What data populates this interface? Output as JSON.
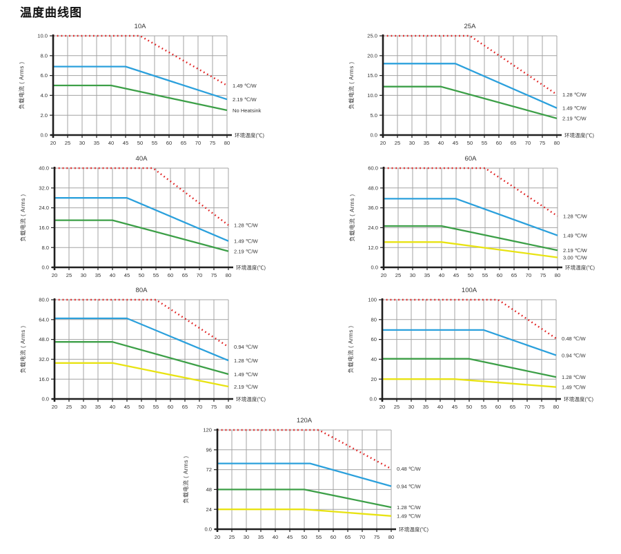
{
  "page_title": "温度曲线图",
  "colors": {
    "red": "#e02222",
    "blue": "#2ba0dc",
    "green": "#3c9f47",
    "yellow": "#e8e312",
    "grid": "#a3a3a3",
    "axis": "#1f1f1f",
    "text": "#333333"
  },
  "x_axis_label": "环境温度(℃)",
  "y_axis_label": "负载电流 ( Arms )",
  "x_ticks": [
    20,
    25,
    30,
    35,
    40,
    45,
    50,
    55,
    60,
    65,
    70,
    75,
    80
  ],
  "chart_data": [
    {
      "type": "line",
      "title": "10A",
      "xlabel": "环境温度(℃)",
      "ylabel": "负载电流 ( Arms )",
      "xlim": [
        20,
        80
      ],
      "ylim": [
        0,
        10
      ],
      "grid": true,
      "legend_position": "right-of-line-end",
      "y_ticks": [
        {
          "v": 0,
          "label": "0.0"
        },
        {
          "v": 2,
          "label": "2.0"
        },
        {
          "v": 4,
          "label": "4.0"
        },
        {
          "v": 6,
          "label": "6.0"
        },
        {
          "v": 8,
          "label": "8.0"
        },
        {
          "v": 10,
          "label": "10.0"
        }
      ],
      "series": [
        {
          "name": "1.49 ℃/W",
          "color": "red",
          "style": "dotted",
          "points": [
            [
              20,
              10
            ],
            [
              50,
              10
            ],
            [
              80,
              5.0
            ]
          ]
        },
        {
          "name": "2.19 ℃/W",
          "color": "blue",
          "style": "solid",
          "points": [
            [
              20,
              6.9
            ],
            [
              45,
              6.9
            ],
            [
              80,
              3.6
            ]
          ]
        },
        {
          "name": "No Heatsink",
          "color": "green",
          "style": "solid",
          "points": [
            [
              20,
              5.0
            ],
            [
              40,
              5.0
            ],
            [
              80,
              2.5
            ]
          ]
        }
      ]
    },
    {
      "type": "line",
      "title": "25A",
      "xlabel": "环境温度(℃)",
      "ylabel": "负载电流 ( Arms )",
      "xlim": [
        20,
        80
      ],
      "ylim": [
        0,
        25
      ],
      "grid": true,
      "legend_position": "right-of-line-end",
      "y_ticks": [
        {
          "v": 0,
          "label": "0.0"
        },
        {
          "v": 5,
          "label": "5.0"
        },
        {
          "v": 10,
          "label": "10.0"
        },
        {
          "v": 15,
          "label": "15.0"
        },
        {
          "v": 20,
          "label": "20.0"
        },
        {
          "v": 25,
          "label": "25.0"
        }
      ],
      "series": [
        {
          "name": "1.28 ℃/W",
          "color": "red",
          "style": "dotted",
          "points": [
            [
              20,
              25
            ],
            [
              50,
              25
            ],
            [
              80,
              10.2
            ]
          ]
        },
        {
          "name": "1.49 ℃/W",
          "color": "blue",
          "style": "solid",
          "points": [
            [
              20,
              18
            ],
            [
              45,
              18
            ],
            [
              80,
              6.8
            ]
          ]
        },
        {
          "name": "2.19 ℃/W",
          "color": "green",
          "style": "solid",
          "points": [
            [
              20,
              12.2
            ],
            [
              40,
              12.2
            ],
            [
              80,
              4.2
            ]
          ]
        }
      ]
    },
    {
      "type": "line",
      "title": "40A",
      "xlabel": "环境温度(℃)",
      "ylabel": "负载电流 ( Arms )",
      "xlim": [
        20,
        80
      ],
      "ylim": [
        0,
        40
      ],
      "grid": true,
      "legend_position": "right-of-line-end",
      "y_ticks": [
        {
          "v": 0,
          "label": "0.0"
        },
        {
          "v": 8,
          "label": "8.0"
        },
        {
          "v": 16,
          "label": "16.0"
        },
        {
          "v": 24,
          "label": "24.0"
        },
        {
          "v": 32,
          "label": "32.0"
        },
        {
          "v": 40,
          "label": "40.0"
        }
      ],
      "series": [
        {
          "name": "1.28 ℃/W",
          "color": "red",
          "style": "dotted",
          "points": [
            [
              20,
              40
            ],
            [
              54,
              40
            ],
            [
              80,
              17
            ]
          ]
        },
        {
          "name": "1.49 ℃/W",
          "color": "blue",
          "style": "solid",
          "points": [
            [
              20,
              28
            ],
            [
              45,
              28
            ],
            [
              80,
              10.6
            ]
          ]
        },
        {
          "name": "2.19 ℃/W",
          "color": "green",
          "style": "solid",
          "points": [
            [
              20,
              19
            ],
            [
              40,
              19
            ],
            [
              80,
              6.5
            ]
          ]
        }
      ]
    },
    {
      "type": "line",
      "title": "60A",
      "xlabel": "环境温度(℃)",
      "ylabel": "负载电流 ( Arms )",
      "xlim": [
        20,
        80
      ],
      "ylim": [
        0,
        60
      ],
      "grid": true,
      "legend_position": "right-of-line-end",
      "y_ticks": [
        {
          "v": 0,
          "label": "0.0"
        },
        {
          "v": 12,
          "label": "12.0"
        },
        {
          "v": 24,
          "label": "24.0"
        },
        {
          "v": 36,
          "label": "36.0"
        },
        {
          "v": 48,
          "label": "48.0"
        },
        {
          "v": 60,
          "label": "60.0"
        }
      ],
      "series": [
        {
          "name": "1.28 ℃/W",
          "color": "red",
          "style": "dotted",
          "points": [
            [
              20,
              60
            ],
            [
              55,
              60
            ],
            [
              80,
              31
            ]
          ]
        },
        {
          "name": "1.49 ℃/W",
          "color": "blue",
          "style": "solid",
          "points": [
            [
              20,
              41.5
            ],
            [
              45,
              41.5
            ],
            [
              80,
              19.3
            ]
          ]
        },
        {
          "name": "2.19 ℃/W",
          "color": "green",
          "style": "solid",
          "points": [
            [
              20,
              25
            ],
            [
              40,
              25
            ],
            [
              80,
              10.3
            ]
          ]
        },
        {
          "name": "3.00 ℃/W",
          "color": "yellow",
          "style": "solid",
          "points": [
            [
              20,
              15.3
            ],
            [
              40,
              15.3
            ],
            [
              80,
              6.0
            ]
          ]
        }
      ]
    },
    {
      "type": "line",
      "title": "80A",
      "xlabel": "环境温度(℃)",
      "ylabel": "负载电流 ( Arms )",
      "xlim": [
        20,
        80
      ],
      "ylim": [
        0,
        80
      ],
      "grid": true,
      "legend_position": "right-of-line-end",
      "y_ticks": [
        {
          "v": 0,
          "label": "0.0"
        },
        {
          "v": 16,
          "label": "16.0"
        },
        {
          "v": 32,
          "label": "32.0"
        },
        {
          "v": 48,
          "label": "48.0"
        },
        {
          "v": 64,
          "label": "64.0"
        },
        {
          "v": 80,
          "label": "80.0"
        }
      ],
      "series": [
        {
          "name": "0.94 ℃/W",
          "color": "red",
          "style": "dotted",
          "points": [
            [
              20,
              80
            ],
            [
              55,
              80
            ],
            [
              80,
              42
            ]
          ]
        },
        {
          "name": "1.28 ℃/W",
          "color": "blue",
          "style": "solid",
          "points": [
            [
              20,
              65
            ],
            [
              45,
              65
            ],
            [
              80,
              31
            ]
          ]
        },
        {
          "name": "1.49 ℃/W",
          "color": "green",
          "style": "solid",
          "points": [
            [
              20,
              46
            ],
            [
              40,
              46
            ],
            [
              80,
              20
            ]
          ]
        },
        {
          "name": "2.19 ℃/W",
          "color": "yellow",
          "style": "solid",
          "points": [
            [
              20,
              29
            ],
            [
              40,
              29
            ],
            [
              80,
              10
            ]
          ]
        }
      ]
    },
    {
      "type": "line",
      "title": "100A",
      "xlabel": "环境温度(℃)",
      "ylabel": "负载电流 ( Arms )",
      "xlim": [
        20,
        80
      ],
      "ylim": [
        0,
        100
      ],
      "grid": true,
      "legend_position": "right-of-line-end",
      "y_ticks": [
        {
          "v": 0,
          "label": "0.0"
        },
        {
          "v": 20,
          "label": "20"
        },
        {
          "v": 40,
          "label": "40"
        },
        {
          "v": 60,
          "label": "60"
        },
        {
          "v": 80,
          "label": "80"
        },
        {
          "v": 100,
          "label": "100"
        }
      ],
      "series": [
        {
          "name": "0.48 ℃/W",
          "color": "red",
          "style": "dotted",
          "points": [
            [
              20,
              100
            ],
            [
              60,
              100
            ],
            [
              80,
              61
            ]
          ]
        },
        {
          "name": "0.94 ℃/W",
          "color": "blue",
          "style": "solid",
          "points": [
            [
              20,
              69.5
            ],
            [
              55,
              69.5
            ],
            [
              80,
              44
            ]
          ]
        },
        {
          "name": "1.28 ℃/W",
          "color": "green",
          "style": "solid",
          "points": [
            [
              20,
              40.5
            ],
            [
              50,
              40.5
            ],
            [
              80,
              22
            ]
          ]
        },
        {
          "name": "1.49 ℃/W",
          "color": "yellow",
          "style": "solid",
          "points": [
            [
              20,
              20
            ],
            [
              45,
              20
            ],
            [
              80,
              12
            ]
          ]
        }
      ]
    },
    {
      "type": "line",
      "title": "120A",
      "xlabel": "环境温度(℃)",
      "ylabel": "负载电流 ( Arms )",
      "xlim": [
        20,
        80
      ],
      "ylim": [
        0,
        120
      ],
      "grid": true,
      "legend_position": "right-of-line-end",
      "y_ticks": [
        {
          "v": 0,
          "label": "0.0"
        },
        {
          "v": 24,
          "label": "24"
        },
        {
          "v": 48,
          "label": "48"
        },
        {
          "v": 72,
          "label": "72"
        },
        {
          "v": 96,
          "label": "96"
        },
        {
          "v": 120,
          "label": "120"
        }
      ],
      "series": [
        {
          "name": "0.48 ℃/W",
          "color": "red",
          "style": "dotted",
          "points": [
            [
              20,
              120
            ],
            [
              55,
              120
            ],
            [
              80,
              73
            ]
          ]
        },
        {
          "name": "0.94 ℃/W",
          "color": "blue",
          "style": "solid",
          "points": [
            [
              20,
              79.5
            ],
            [
              52,
              79.5
            ],
            [
              80,
              52
            ]
          ]
        },
        {
          "name": "1.28 ℃/W",
          "color": "green",
          "style": "solid",
          "points": [
            [
              20,
              48
            ],
            [
              50,
              48
            ],
            [
              80,
              26.5
            ]
          ]
        },
        {
          "name": "1.49 ℃/W",
          "color": "yellow",
          "style": "solid",
          "points": [
            [
              20,
              24
            ],
            [
              50,
              24
            ],
            [
              80,
              16
            ]
          ]
        }
      ]
    }
  ]
}
